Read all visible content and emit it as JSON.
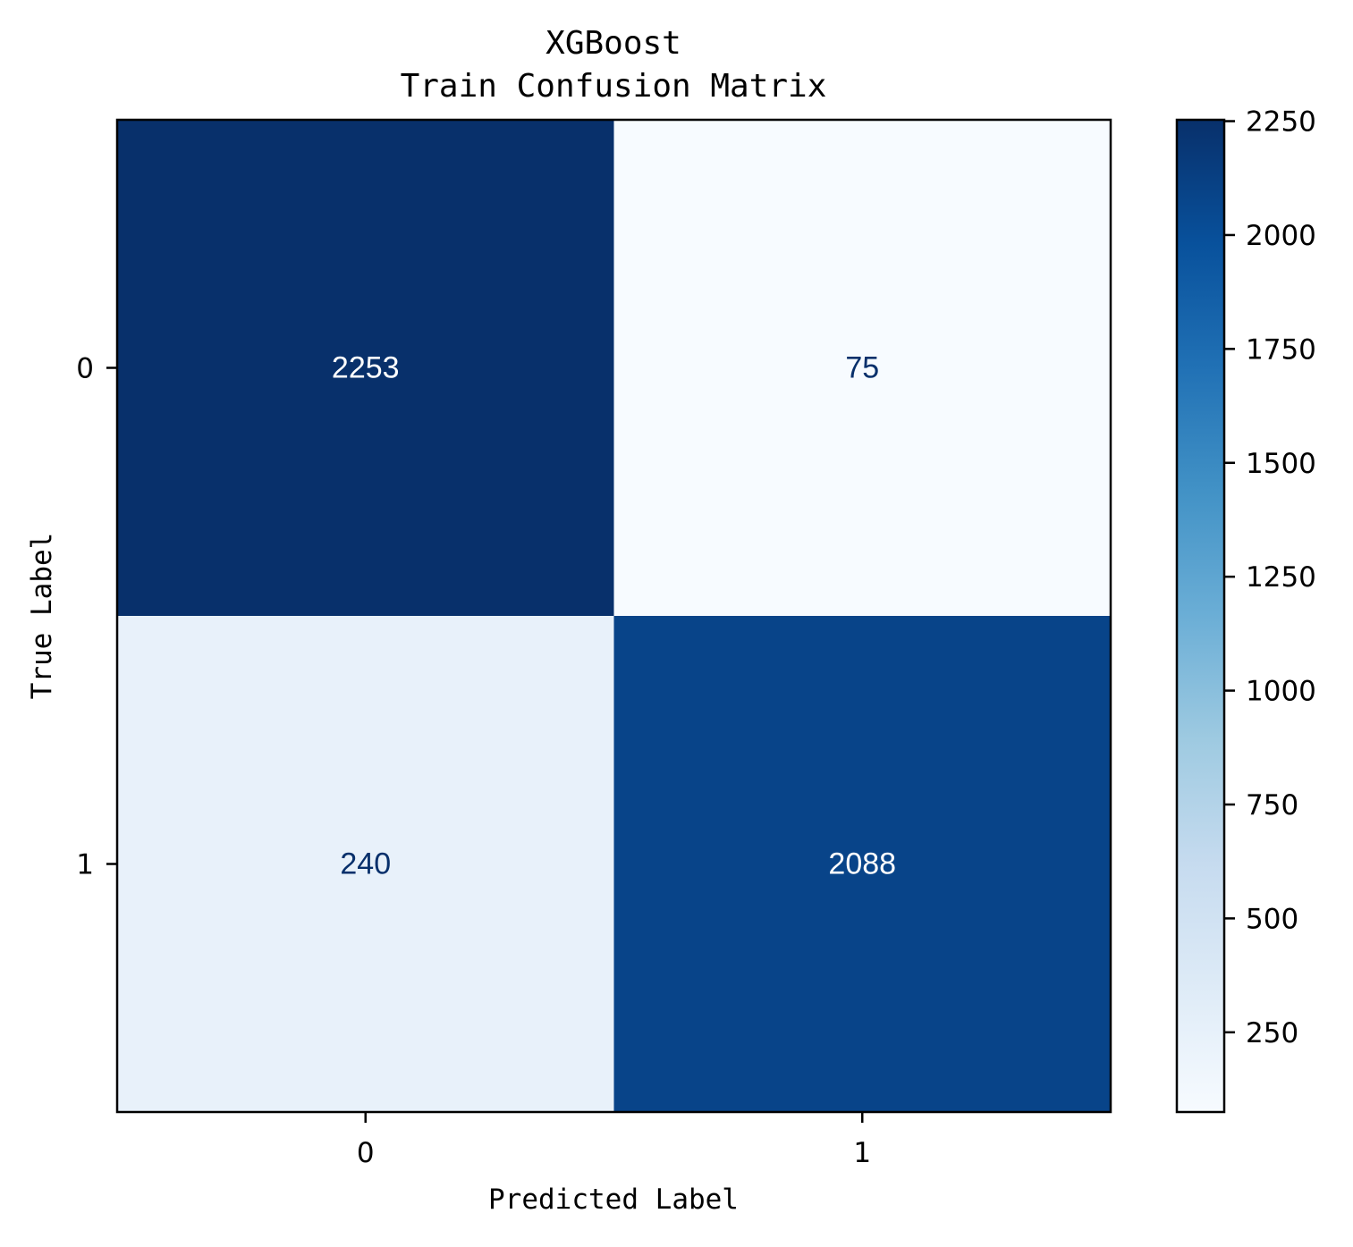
{
  "chart_data": {
    "type": "heatmap",
    "title_lines": [
      "XGBoost",
      "Train Confusion Matrix"
    ],
    "xlabel": "Predicted Label",
    "ylabel": "True Label",
    "x_categories": [
      "0",
      "1"
    ],
    "y_categories": [
      "0",
      "1"
    ],
    "matrix": [
      [
        2253,
        75
      ],
      [
        240,
        2088
      ]
    ],
    "colormap": "Blues",
    "colorbar": {
      "vmin": 75,
      "vmax": 2253,
      "ticks": [
        250,
        500,
        750,
        1000,
        1250,
        1500,
        1750,
        2000,
        2250
      ]
    },
    "grid": false,
    "colors": {
      "dark_text": "#08306b",
      "light_text": "#ffffff",
      "axis": "#000000",
      "background": "#ffffff"
    }
  }
}
